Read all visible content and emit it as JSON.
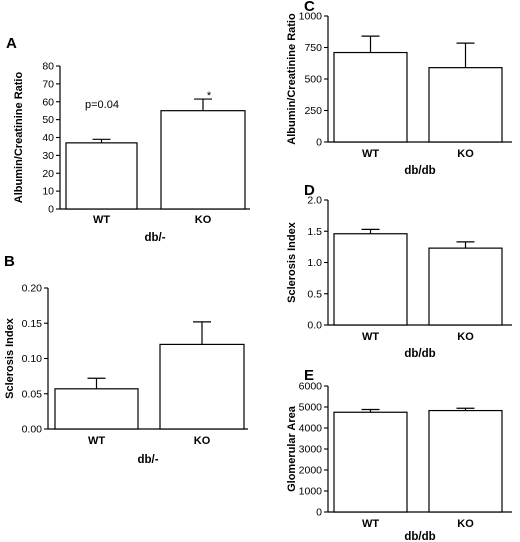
{
  "chart_data": [
    {
      "panel": "A",
      "type": "bar",
      "categories": [
        "WT",
        "KO"
      ],
      "values": [
        37,
        55
      ],
      "errors": [
        2,
        6.5
      ],
      "xlabel": "db/-",
      "ylabel": "Albumin/Creatinine Ratio",
      "ylim": [
        0,
        80
      ],
      "yticks": [
        0,
        10,
        20,
        30,
        40,
        50,
        60,
        70,
        80
      ],
      "annotations": [
        "p=0.04",
        "*"
      ]
    },
    {
      "panel": "B",
      "type": "bar",
      "categories": [
        "WT",
        "KO"
      ],
      "values": [
        0.057,
        0.12
      ],
      "errors": [
        0.015,
        0.032
      ],
      "xlabel": "db/-",
      "ylabel": "Sclerosis Index",
      "ylim": [
        0,
        0.2
      ],
      "yticks": [
        "0.00",
        "0.05",
        "0.10",
        "0.15",
        "0.20"
      ]
    },
    {
      "panel": "C",
      "type": "bar",
      "categories": [
        "WT",
        "KO"
      ],
      "values": [
        710,
        590
      ],
      "errors": [
        130,
        195
      ],
      "xlabel": "db/db",
      "ylabel": "Albumin/Creatinine Ratio",
      "ylim": [
        0,
        1000
      ],
      "yticks": [
        0,
        250,
        500,
        750,
        1000
      ]
    },
    {
      "panel": "D",
      "type": "bar",
      "categories": [
        "WT",
        "KO"
      ],
      "values": [
        1.46,
        1.23
      ],
      "errors": [
        0.07,
        0.1
      ],
      "xlabel": "db/db",
      "ylabel": "Sclerosis Index",
      "ylim": [
        0,
        2
      ],
      "yticks": [
        "0.0",
        "0.5",
        "1.0",
        "1.5",
        "2.0"
      ]
    },
    {
      "panel": "E",
      "type": "bar",
      "categories": [
        "WT",
        "KO"
      ],
      "values": [
        4750,
        4830
      ],
      "errors": [
        130,
        110
      ],
      "xlabel": "db/db",
      "ylabel": "Glomerular Area",
      "ylim": [
        0,
        6000
      ],
      "yticks": [
        0,
        1000,
        2000,
        3000,
        4000,
        5000,
        6000
      ]
    }
  ]
}
